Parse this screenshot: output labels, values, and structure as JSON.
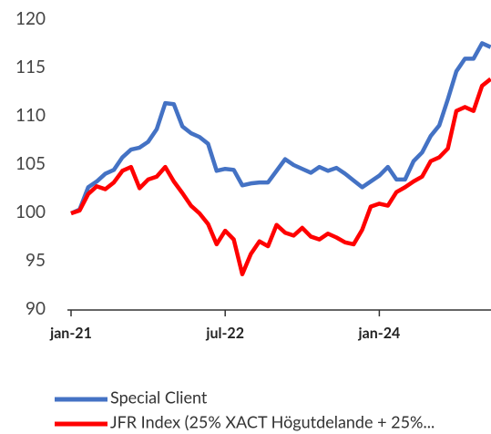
{
  "chart_data": {
    "type": "line",
    "categories": [
      "jan-21",
      null,
      null,
      null,
      null,
      null,
      null,
      null,
      null,
      null,
      null,
      null,
      null,
      null,
      null,
      null,
      null,
      null,
      "jul-22",
      null,
      null,
      null,
      null,
      null,
      null,
      null,
      null,
      null,
      null,
      null,
      null,
      null,
      null,
      null,
      null,
      null,
      "jan-24",
      null,
      null,
      null,
      null,
      null,
      null,
      null,
      null,
      null,
      null,
      null,
      null,
      null
    ],
    "series": [
      {
        "name": "Special Client",
        "color": "#4472c4",
        "values": [
          100,
          100.4,
          102.7,
          103.3,
          104.1,
          104.5,
          105.8,
          106.6,
          106.8,
          107.4,
          108.7,
          111.4,
          111.3,
          109,
          108.3,
          107.9,
          107.2,
          104.4,
          104.6,
          104.5,
          102.9,
          103.1,
          103.2,
          103.2,
          104.4,
          105.6,
          105,
          104.6,
          104.2,
          104.8,
          104.4,
          104.7,
          104.1,
          103.4,
          102.7,
          103.3,
          103.9,
          104.8,
          103.5,
          103.5,
          105.4,
          106.3,
          108,
          109.1,
          111.8,
          114.7,
          116,
          116,
          117.6,
          117.2
        ]
      },
      {
        "name": "JFR Index (25% XACT Högutdelande + 25%...",
        "color": "#ff0000",
        "values": [
          100,
          100.3,
          102,
          102.8,
          102.5,
          103.2,
          104.4,
          104.8,
          102.6,
          103.5,
          103.8,
          104.8,
          103.3,
          102.1,
          100.8,
          100,
          98.9,
          96.8,
          98.2,
          97.3,
          93.7,
          95.8,
          97.1,
          96.6,
          98.8,
          98,
          97.7,
          98.5,
          97.6,
          97.3,
          97.9,
          97.5,
          97,
          96.8,
          98.3,
          100.7,
          101,
          100.8,
          102.2,
          102.7,
          103.3,
          103.8,
          105.4,
          105.8,
          106.7,
          110.6,
          111,
          110.6,
          113.2,
          113.9
        ]
      }
    ],
    "ylim": [
      90,
      120
    ],
    "yticks": [
      90,
      95,
      100,
      105,
      110,
      115,
      120
    ],
    "grid": false
  }
}
